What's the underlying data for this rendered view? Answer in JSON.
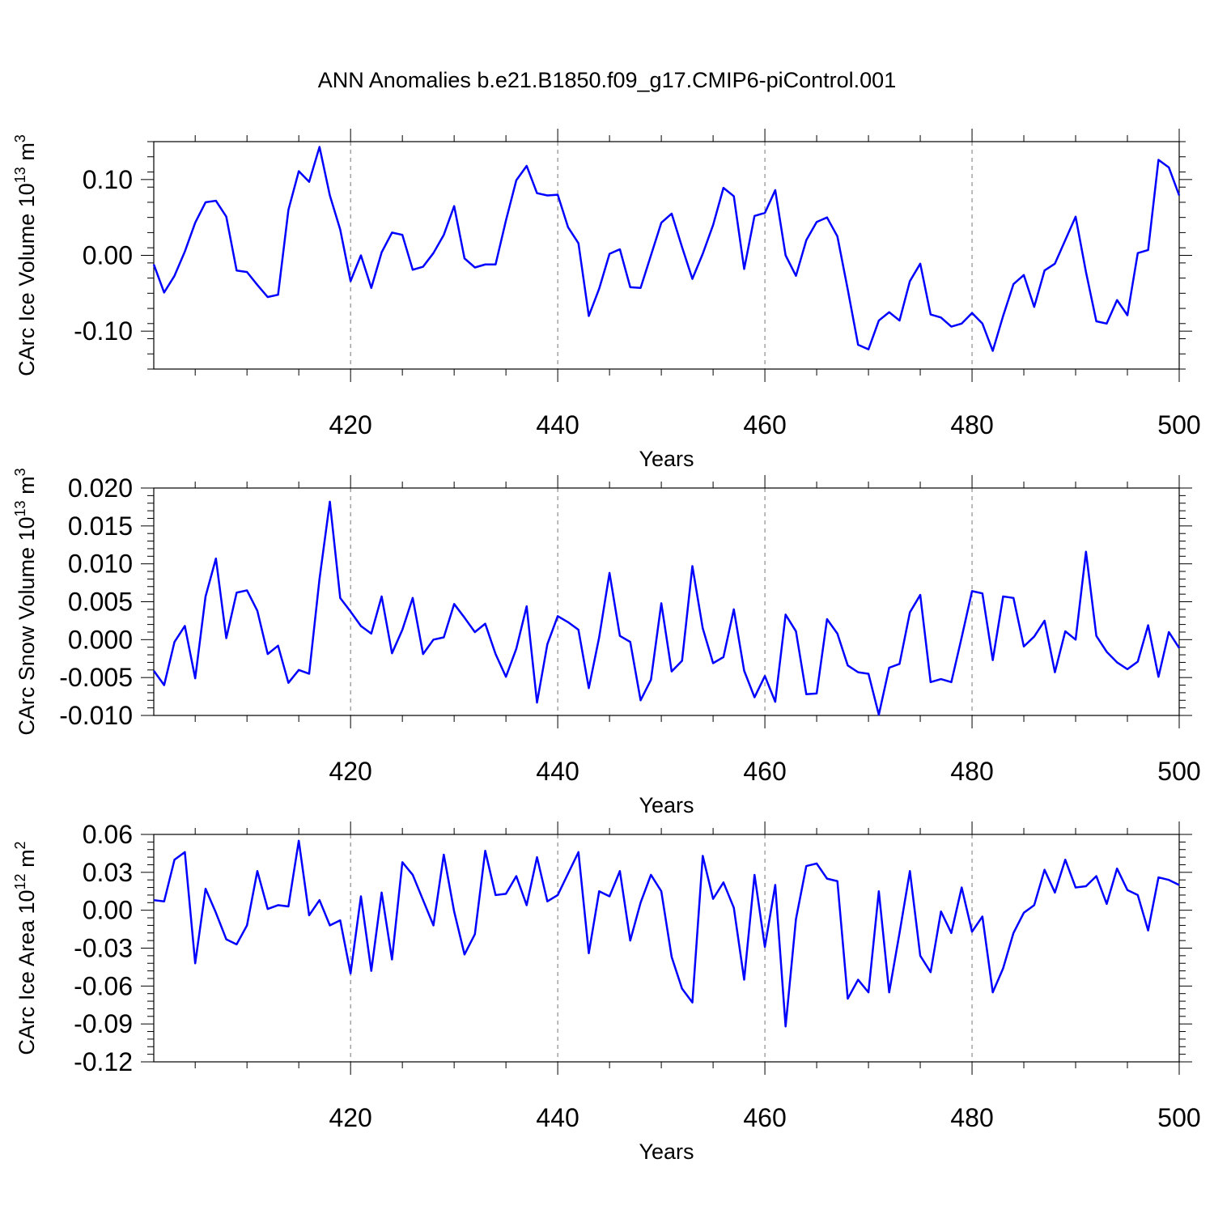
{
  "figure": {
    "title": "ANN Anomalies b.e21.B1850.f09_g17.CMIP6-piControl.001",
    "line_color": "#0000ff"
  },
  "chart_data": [
    {
      "type": "line",
      "xlabel": "Years",
      "ylabel": "CArc Ice Volume 10",
      "ylabel_exp": "13",
      "ylabel_unit": " m",
      "ylabel_unit_exp": "3",
      "xlim": [
        401,
        500
      ],
      "ylim": [
        -0.15,
        0.15
      ],
      "xticks": [
        420,
        440,
        460,
        480,
        500
      ],
      "yticks": [
        -0.1,
        0.0,
        0.1
      ],
      "ytick_labels": [
        "-0.10",
        "0.00",
        "0.10"
      ],
      "yminor_step": 0.02,
      "grid": "vertical dashed at major x ticks",
      "x_start": 401,
      "values": [
        -0.012,
        -0.049,
        -0.027,
        0.005,
        0.043,
        0.07,
        0.072,
        0.051,
        -0.02,
        -0.022,
        -0.039,
        -0.055,
        -0.052,
        0.06,
        0.111,
        0.097,
        0.143,
        0.079,
        0.034,
        -0.034,
        0.0,
        -0.043,
        0.004,
        0.03,
        0.027,
        -0.019,
        -0.015,
        0.003,
        0.027,
        0.065,
        -0.004,
        -0.016,
        -0.012,
        -0.012,
        0.046,
        0.099,
        0.118,
        0.082,
        0.079,
        0.08,
        0.037,
        0.016,
        -0.08,
        -0.044,
        0.002,
        0.008,
        -0.042,
        -0.043,
        0.0,
        0.043,
        0.055,
        0.011,
        -0.031,
        0.002,
        0.04,
        0.089,
        0.078,
        -0.018,
        0.052,
        0.056,
        0.086,
        0.0,
        -0.027,
        0.02,
        0.044,
        0.05,
        0.025,
        -0.045,
        -0.118,
        -0.124,
        -0.086,
        -0.075,
        -0.086,
        -0.034,
        -0.011,
        -0.078,
        -0.082,
        -0.094,
        -0.09,
        -0.076,
        -0.09,
        -0.126,
        -0.08,
        -0.038,
        -0.026,
        -0.068,
        -0.02,
        -0.011,
        0.02,
        0.051,
        -0.022,
        -0.087,
        -0.09,
        -0.059,
        -0.079,
        0.003,
        0.007,
        0.126,
        0.116,
        0.079
      ]
    },
    {
      "type": "line",
      "xlabel": "Years",
      "ylabel": "CArc Snow Volume 10",
      "ylabel_exp": "13",
      "ylabel_unit": " m",
      "ylabel_unit_exp": "3",
      "xlim": [
        401,
        500
      ],
      "ylim": [
        -0.01,
        0.02
      ],
      "xticks": [
        420,
        440,
        460,
        480,
        500
      ],
      "yticks": [
        -0.01,
        -0.005,
        0.0,
        0.005,
        0.01,
        0.015,
        0.02
      ],
      "ytick_labels": [
        "-0.010",
        "-0.005",
        "0.000",
        "0.005",
        "0.010",
        "0.015",
        "0.020"
      ],
      "yminor_step": 0.001,
      "grid": "vertical dashed at major x ticks",
      "x_start": 401,
      "values": [
        -0.0041,
        -0.006,
        -0.0003,
        0.0018,
        -0.0051,
        0.0057,
        0.0107,
        0.0002,
        0.0062,
        0.0065,
        0.0038,
        -0.0019,
        -0.0008,
        -0.0057,
        -0.004,
        -0.0045,
        0.008,
        0.0182,
        0.0055,
        0.0037,
        0.0018,
        0.0008,
        0.0057,
        -0.0018,
        0.0013,
        0.0055,
        -0.0019,
        0.0,
        0.0003,
        0.0047,
        0.0029,
        0.001,
        0.0021,
        -0.0019,
        -0.0049,
        -0.0012,
        0.0044,
        -0.0083,
        -0.0006,
        0.0031,
        0.0023,
        0.0013,
        -0.0064,
        0.0003,
        0.0088,
        0.0005,
        -0.0003,
        -0.008,
        -0.0053,
        0.0048,
        -0.0042,
        -0.0028,
        0.0097,
        0.0015,
        -0.0031,
        -0.0023,
        0.004,
        -0.0041,
        -0.0076,
        -0.0048,
        -0.0082,
        0.0033,
        0.0011,
        -0.0072,
        -0.0071,
        0.0027,
        0.0008,
        -0.0034,
        -0.0043,
        -0.0045,
        -0.0099,
        -0.0037,
        -0.0032,
        0.0036,
        0.0059,
        -0.0056,
        -0.0052,
        -0.0056,
        0.0003,
        0.0064,
        0.0061,
        -0.0027,
        0.0057,
        0.0055,
        -0.0009,
        0.0004,
        0.0025,
        -0.0043,
        0.0011,
        0.0,
        0.0116,
        0.0005,
        -0.0016,
        -0.003,
        -0.0039,
        -0.0029,
        0.0019,
        -0.0049,
        0.001,
        -0.0011
      ]
    },
    {
      "type": "line",
      "xlabel": "Years",
      "ylabel": "CArc Ice Area 10",
      "ylabel_exp": "12",
      "ylabel_unit": " m",
      "ylabel_unit_exp": "2",
      "xlim": [
        401,
        500
      ],
      "ylim": [
        -0.12,
        0.06
      ],
      "xticks": [
        420,
        440,
        460,
        480,
        500
      ],
      "yticks": [
        -0.12,
        -0.09,
        -0.06,
        -0.03,
        0.0,
        0.03,
        0.06
      ],
      "ytick_labels": [
        "-0.12",
        "-0.09",
        "-0.06",
        "-0.03",
        "0.00",
        "0.03",
        "0.06"
      ],
      "yminor_step": 0.006,
      "grid": "vertical dashed at major x ticks",
      "x_start": 401,
      "values": [
        0.008,
        0.007,
        0.04,
        0.046,
        -0.042,
        0.017,
        -0.002,
        -0.023,
        -0.027,
        -0.012,
        0.031,
        0.001,
        0.004,
        0.003,
        0.055,
        -0.004,
        0.008,
        -0.012,
        -0.008,
        -0.05,
        0.011,
        -0.048,
        0.014,
        -0.039,
        0.038,
        0.028,
        0.008,
        -0.012,
        0.044,
        -0.001,
        -0.035,
        -0.019,
        0.047,
        0.012,
        0.013,
        0.027,
        0.004,
        0.042,
        0.007,
        0.012,
        0.029,
        0.046,
        -0.034,
        0.015,
        0.011,
        0.031,
        -0.024,
        0.006,
        0.028,
        0.015,
        -0.037,
        -0.062,
        -0.073,
        0.043,
        0.009,
        0.022,
        0.002,
        -0.055,
        0.028,
        -0.029,
        0.02,
        -0.092,
        -0.007,
        0.035,
        0.037,
        0.025,
        0.023,
        -0.07,
        -0.055,
        -0.065,
        0.015,
        -0.065,
        -0.018,
        0.031,
        -0.036,
        -0.049,
        -0.001,
        -0.018,
        0.018,
        -0.017,
        -0.005,
        -0.065,
        -0.046,
        -0.018,
        -0.002,
        0.004,
        0.032,
        0.014,
        0.04,
        0.018,
        0.019,
        0.027,
        0.005,
        0.033,
        0.016,
        0.012,
        -0.016,
        0.026,
        0.024,
        0.02
      ]
    }
  ]
}
